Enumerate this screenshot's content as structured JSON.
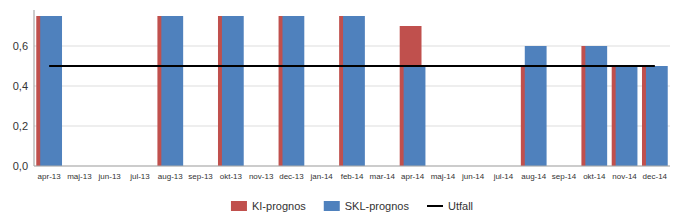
{
  "chart_data": {
    "type": "bar",
    "categories": [
      "apr-13",
      "maj-13",
      "jun-13",
      "jul-13",
      "aug-13",
      "sep-13",
      "okt-13",
      "nov-13",
      "dec-13",
      "jan-14",
      "feb-14",
      "mar-14",
      "apr-14",
      "maj-14",
      "jun-14",
      "jul-14",
      "aug-14",
      "sep-14",
      "okt-14",
      "nov-14",
      "dec-14"
    ],
    "series": [
      {
        "name": "KI-prognos",
        "color": "#C0504D",
        "values": [
          0.75,
          null,
          null,
          null,
          0.75,
          null,
          0.75,
          null,
          0.75,
          null,
          0.75,
          null,
          0.7,
          null,
          null,
          null,
          0.5,
          null,
          0.6,
          0.5,
          0.5
        ]
      },
      {
        "name": "SKL-prognos",
        "color": "#4F81BD",
        "values": [
          0.75,
          null,
          null,
          null,
          0.75,
          null,
          0.75,
          null,
          0.75,
          null,
          0.75,
          null,
          0.5,
          null,
          null,
          null,
          0.6,
          null,
          0.6,
          0.5,
          0.5
        ]
      },
      {
        "name": "Utfall",
        "type": "line",
        "color": "#000000",
        "values": [
          0.5,
          0.5,
          0.5,
          0.5,
          0.5,
          0.5,
          0.5,
          0.5,
          0.5,
          0.5,
          0.5,
          0.5,
          0.5,
          0.5,
          0.5,
          0.5,
          0.5,
          0.5,
          0.5,
          0.5,
          0.5
        ]
      }
    ],
    "ylim": [
      0.0,
      0.78
    ],
    "yticks": [
      {
        "value": 0.0,
        "label": "0,0"
      },
      {
        "value": 0.2,
        "label": "0,2"
      },
      {
        "value": 0.4,
        "label": "0,4"
      },
      {
        "value": 0.6,
        "label": "0,6"
      }
    ],
    "grid": true,
    "legend": "bottom"
  }
}
